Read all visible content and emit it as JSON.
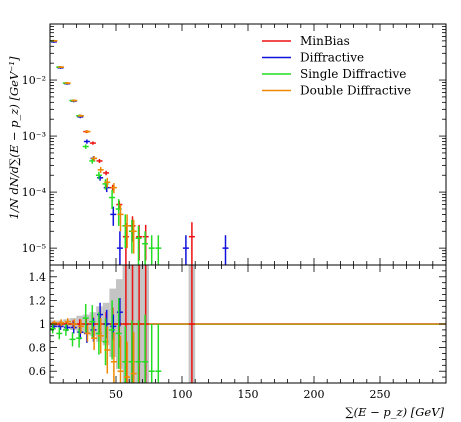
{
  "chart_data": {
    "type": "scatter",
    "xlabel": "∑(E − p_z) [GeV]",
    "ylabel": "1/N dN/d∑(E − p_z) [GeV⁻¹]",
    "xlim": [
      0,
      300
    ],
    "main_ylim": [
      5e-06,
      0.1
    ],
    "main_yscale": "log",
    "ratio_ylim": [
      0.5,
      1.5
    ],
    "x_ticks": [
      50,
      100,
      150,
      200,
      250
    ],
    "main_y_ticks": [
      {
        "value": 1e-05,
        "label": "10⁻⁵"
      },
      {
        "value": 0.0001,
        "label": "10⁻⁴"
      },
      {
        "value": 0.001,
        "label": "10⁻³"
      },
      {
        "value": 0.01,
        "label": "10⁻²"
      }
    ],
    "ratio_y_ticks": [
      {
        "value": 0.6,
        "label": "0.6"
      },
      {
        "value": 0.8,
        "label": "0.8"
      },
      {
        "value": 1.0,
        "label": "1"
      },
      {
        "value": 1.2,
        "label": "1.2"
      },
      {
        "value": 1.4,
        "label": "1.4"
      }
    ],
    "legend_position": "top-right",
    "reference_band": [
      {
        "x0": 0,
        "x1": 5,
        "lo": 0.97,
        "hi": 1.03
      },
      {
        "x0": 5,
        "x1": 10,
        "lo": 0.97,
        "hi": 1.03
      },
      {
        "x0": 10,
        "x1": 15,
        "lo": 0.96,
        "hi": 1.04
      },
      {
        "x0": 15,
        "x1": 20,
        "lo": 0.95,
        "hi": 1.05
      },
      {
        "x0": 20,
        "x1": 25,
        "lo": 0.93,
        "hi": 1.07
      },
      {
        "x0": 25,
        "x1": 30,
        "lo": 0.92,
        "hi": 1.08
      },
      {
        "x0": 30,
        "x1": 35,
        "lo": 0.9,
        "hi": 1.1
      },
      {
        "x0": 35,
        "x1": 40,
        "lo": 0.85,
        "hi": 1.15
      },
      {
        "x0": 40,
        "x1": 45,
        "lo": 0.82,
        "hi": 1.18
      },
      {
        "x0": 45,
        "x1": 50,
        "lo": 0.72,
        "hi": 1.3
      },
      {
        "x0": 50,
        "x1": 55,
        "lo": 0.62,
        "hi": 1.38
      },
      {
        "x0": 55,
        "x1": 60,
        "lo": 0.5,
        "hi": 1.5
      },
      {
        "x0": 60,
        "x1": 65,
        "lo": 0.5,
        "hi": 1.5
      },
      {
        "x0": 65,
        "x1": 70,
        "lo": 0.5,
        "hi": 1.5
      },
      {
        "x0": 70,
        "x1": 75,
        "lo": 0.5,
        "hi": 1.5
      },
      {
        "x0": 105,
        "x1": 110,
        "lo": 0.5,
        "hi": 1.5
      }
    ],
    "series": [
      {
        "name": "MinBias",
        "color": "#ee1111",
        "points": [
          {
            "x": 2.5,
            "y": 0.05,
            "yerr": 0.002,
            "ratio": 1.0,
            "rerr": 0.02
          },
          {
            "x": 7.5,
            "y": 0.017,
            "yerr": 0.0007,
            "ratio": 1.0,
            "rerr": 0.02
          },
          {
            "x": 12.5,
            "y": 0.0088,
            "yerr": 0.0004,
            "ratio": 1.0,
            "rerr": 0.02
          },
          {
            "x": 17.5,
            "y": 0.0043,
            "yerr": 0.0002,
            "ratio": 1.0,
            "rerr": 0.03
          },
          {
            "x": 22.5,
            "y": 0.0023,
            "yerr": 0.00012,
            "ratio": 1.0,
            "rerr": 0.04
          },
          {
            "x": 27.5,
            "y": 0.0012,
            "yerr": 7e-05,
            "ratio": 1.0,
            "rerr": 0.05
          },
          {
            "x": 32.5,
            "y": 0.00075,
            "yerr": 5e-05,
            "ratio": 1.0,
            "rerr": 0.06
          },
          {
            "x": 37.5,
            "y": 0.00036,
            "yerr": 3e-05,
            "ratio": 1.0,
            "rerr": 0.08
          },
          {
            "x": 42.5,
            "y": 0.00022,
            "yerr": 2e-05,
            "ratio": 1.0,
            "rerr": 0.1
          },
          {
            "x": 47.5,
            "y": 0.00012,
            "yerr": 1.5e-05,
            "ratio": 1.0,
            "rerr": 0.14
          },
          {
            "x": 52.5,
            "y": 6e-05,
            "yerr": 1e-05,
            "ratio": 1.0,
            "rerr": 0.2
          },
          {
            "x": 57.5,
            "y": 1.6e-05,
            "yerr": 1.2e-05,
            "ratio": 1.0,
            "rerr": 0.5
          },
          {
            "x": 62.5,
            "y": 2.5e-05,
            "yerr": 1.2e-05,
            "ratio": 1.0,
            "rerr": 0.5
          },
          {
            "x": 67.5,
            "y": 1.6e-05,
            "yerr": 1e-05,
            "ratio": 1.0,
            "rerr": 0.5
          },
          {
            "x": 72.5,
            "y": 1.6e-05,
            "yerr": 1e-05,
            "ratio": 1.0,
            "rerr": 0.5
          },
          {
            "x": 107.5,
            "y": 1.6e-05,
            "yerr": 1.3e-05,
            "ratio": 1.0,
            "rerr": 0.5
          }
        ]
      },
      {
        "name": "Diffractive",
        "color": "#1111dd",
        "points": [
          {
            "x": 2.5,
            "y": 0.048,
            "yerr": 0.002,
            "ratio": 0.98,
            "rerr": 0.02
          },
          {
            "x": 7.5,
            "y": 0.0165,
            "yerr": 0.0007,
            "ratio": 0.98,
            "rerr": 0.03
          },
          {
            "x": 12.5,
            "y": 0.0086,
            "yerr": 0.0004,
            "ratio": 0.97,
            "rerr": 0.03
          },
          {
            "x": 17.5,
            "y": 0.0042,
            "yerr": 0.0002,
            "ratio": 0.97,
            "rerr": 0.05
          },
          {
            "x": 22.5,
            "y": 0.0022,
            "yerr": 0.00012,
            "ratio": 0.93,
            "rerr": 0.06
          },
          {
            "x": 27.5,
            "y": 0.0008,
            "yerr": 7e-05,
            "ratio": 0.92,
            "rerr": 0.08
          },
          {
            "x": 32.5,
            "y": 0.0004,
            "yerr": 4e-05,
            "ratio": 0.95,
            "rerr": 0.1
          },
          {
            "x": 37.5,
            "y": 0.00018,
            "yerr": 2e-05,
            "ratio": 1.08,
            "rerr": 0.1
          },
          {
            "x": 42.5,
            "y": 0.00012,
            "yerr": 2e-05,
            "ratio": 1.0,
            "rerr": 0.12
          },
          {
            "x": 47.5,
            "y": 4e-05,
            "yerr": 1.5e-05,
            "ratio": 0.98,
            "rerr": 0.1
          },
          {
            "x": 52.5,
            "y": 1e-05,
            "yerr": 1e-05,
            "ratio": 1.1,
            "rerr": 0.12
          },
          {
            "x": 102.5,
            "y": 1e-05,
            "yerr": 7e-06,
            "ratio": 1.0,
            "rerr": 0.0
          },
          {
            "x": 132.5,
            "y": 1e-05,
            "yerr": 7e-06,
            "ratio": 1.0,
            "rerr": 0.0
          }
        ]
      },
      {
        "name": "Single Diffractive",
        "color": "#22dd22",
        "points": [
          {
            "x": 2.5,
            "y": 0.05,
            "yerr": 0.002,
            "ratio": 0.96,
            "rerr": 0.04
          },
          {
            "x": 7.5,
            "y": 0.017,
            "yerr": 0.0007,
            "ratio": 0.92,
            "rerr": 0.05
          },
          {
            "x": 12.5,
            "y": 0.0088,
            "yerr": 0.0004,
            "ratio": 0.95,
            "rerr": 0.05
          },
          {
            "x": 17.5,
            "y": 0.0043,
            "yerr": 0.0002,
            "ratio": 0.87,
            "rerr": 0.06
          },
          {
            "x": 22.5,
            "y": 0.0023,
            "yerr": 0.00012,
            "ratio": 0.88,
            "rerr": 0.08
          },
          {
            "x": 27.5,
            "y": 0.00065,
            "yerr": 6e-05,
            "ratio": 1.05,
            "rerr": 0.12
          },
          {
            "x": 32.5,
            "y": 0.00036,
            "yerr": 4e-05,
            "ratio": 1.02,
            "rerr": 0.14
          },
          {
            "x": 37.5,
            "y": 0.0002,
            "yerr": 3e-05,
            "ratio": 0.92,
            "rerr": 0.18
          },
          {
            "x": 42.5,
            "y": 0.00014,
            "yerr": 3e-05,
            "ratio": 0.85,
            "rerr": 0.2
          },
          {
            "x": 47.5,
            "y": 8e-05,
            "yerr": 3e-05,
            "ratio": 0.95,
            "rerr": 0.25
          },
          {
            "x": 52.5,
            "y": 5e-05,
            "yerr": 2.5e-05,
            "ratio": 0.92,
            "rerr": 0.3
          },
          {
            "x": 57.5,
            "y": 2.5e-05,
            "yerr": 1.5e-05,
            "ratio": 0.68,
            "rerr": 0.3
          },
          {
            "x": 62.5,
            "y": 2e-05,
            "yerr": 1.2e-05,
            "ratio": 0.68,
            "rerr": 0.35
          },
          {
            "x": 67.5,
            "y": 1.5e-05,
            "yerr": 1e-05,
            "ratio": 0.68,
            "rerr": 0.35
          },
          {
            "x": 72.5,
            "y": 1.2e-05,
            "yerr": 8e-06,
            "ratio": 0.68,
            "rerr": 0.4
          },
          {
            "x": 77.5,
            "y": 1e-05,
            "yerr": 7e-06,
            "ratio": 0.6,
            "rerr": 0.4
          },
          {
            "x": 82.5,
            "y": 1e-05,
            "yerr": 7e-06,
            "ratio": 0.6,
            "rerr": 0.4
          }
        ]
      },
      {
        "name": "Double Diffractive",
        "color": "#ee8800",
        "points": [
          {
            "x": 2.5,
            "y": 0.05,
            "yerr": 0.002,
            "ratio": 1.01,
            "rerr": 0.02
          },
          {
            "x": 7.5,
            "y": 0.017,
            "yerr": 0.0007,
            "ratio": 1.01,
            "rerr": 0.03
          },
          {
            "x": 12.5,
            "y": 0.0088,
            "yerr": 0.0004,
            "ratio": 1.02,
            "rerr": 0.03
          },
          {
            "x": 17.5,
            "y": 0.0043,
            "yerr": 0.0002,
            "ratio": 1.0,
            "rerr": 0.04
          },
          {
            "x": 22.5,
            "y": 0.0023,
            "yerr": 0.00012,
            "ratio": 0.98,
            "rerr": 0.06
          },
          {
            "x": 27.5,
            "y": 0.0012,
            "yerr": 7e-05,
            "ratio": 0.92,
            "rerr": 0.07
          },
          {
            "x": 32.5,
            "y": 0.0004,
            "yerr": 4e-05,
            "ratio": 0.88,
            "rerr": 0.1
          },
          {
            "x": 37.5,
            "y": 0.00025,
            "yerr": 3e-05,
            "ratio": 0.9,
            "rerr": 0.15
          },
          {
            "x": 42.5,
            "y": 0.00015,
            "yerr": 3e-05,
            "ratio": 0.78,
            "rerr": 0.2
          },
          {
            "x": 47.5,
            "y": 0.00012,
            "yerr": 2.5e-05,
            "ratio": 0.68,
            "rerr": 0.25
          },
          {
            "x": 52.5,
            "y": 4e-05,
            "yerr": 2e-05,
            "ratio": 0.6,
            "rerr": 0.3
          },
          {
            "x": 57.5,
            "y": 2.5e-05,
            "yerr": 1.5e-05,
            "ratio": 0.55,
            "rerr": 0.3
          },
          {
            "x": 62.5,
            "y": 2e-05,
            "yerr": 1.2e-05,
            "ratio": 0.58,
            "rerr": 0.35
          }
        ]
      }
    ]
  }
}
